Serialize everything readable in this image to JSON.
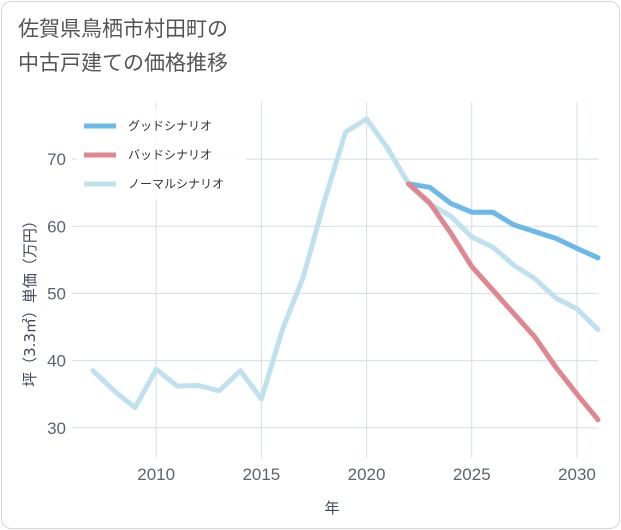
{
  "chart_data": {
    "type": "line",
    "title_lines": [
      "佐賀県鳥栖市村田町の",
      "中古戸建ての価格推移"
    ],
    "xlabel": "年",
    "ylabel": "坪（3.3㎡）単価（万円）",
    "xlim": [
      2006,
      2031
    ],
    "ylim": [
      25.5,
      78.5
    ],
    "xticks": [
      2010,
      2015,
      2020,
      2025,
      2030
    ],
    "yticks": [
      30,
      40,
      50,
      60,
      70
    ],
    "grid": true,
    "legend_position": "top-left",
    "series": [
      {
        "name": "グッドシナリオ",
        "color": "#6bb8ea",
        "x": [
          2022,
          2023,
          2024,
          2025,
          2026,
          2027,
          2028,
          2029,
          2030,
          2031
        ],
        "y": [
          66.3,
          65.8,
          63.4,
          62.1,
          62.1,
          60.2,
          59.2,
          58.2,
          56.7,
          55.3
        ]
      },
      {
        "name": "バッドシナリオ",
        "color": "#e0868f",
        "x": [
          2022,
          2023,
          2024,
          2025,
          2026,
          2027,
          2028,
          2029,
          2030,
          2031
        ],
        "y": [
          66.3,
          63.5,
          59.0,
          54.0,
          50.5,
          47.0,
          43.5,
          39.0,
          35.0,
          31.2
        ]
      },
      {
        "name": "ノーマルシナリオ",
        "color": "#bfe0ee",
        "x": [
          2007,
          2008,
          2009,
          2010,
          2011,
          2012,
          2013,
          2014,
          2015,
          2016,
          2017,
          2018,
          2019,
          2020,
          2021,
          2022,
          2023,
          2024,
          2025,
          2026,
          2027,
          2028,
          2029,
          2030,
          2031
        ],
        "y": [
          38.5,
          35.5,
          33.0,
          38.7,
          36.2,
          36.3,
          35.5,
          38.5,
          34.3,
          44.6,
          52.5,
          63.8,
          74.0,
          76.0,
          71.6,
          66.3,
          63.3,
          61.5,
          58.4,
          56.9,
          54.2,
          52.2,
          49.3,
          47.7,
          44.6
        ]
      }
    ]
  }
}
